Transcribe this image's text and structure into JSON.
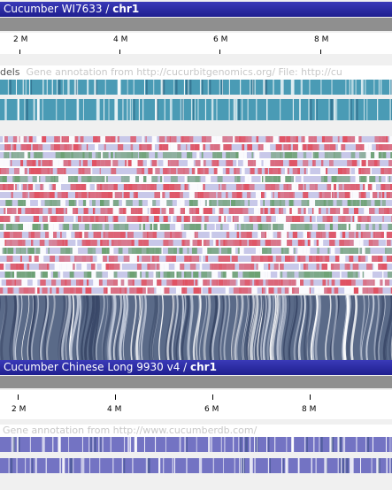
{
  "genome1": {
    "name": "Cucumber WI7633",
    "sep": " / ",
    "chromosome": "chr1",
    "ruler_labels": [
      "2 M",
      "4 M",
      "6 M",
      "8 M"
    ],
    "track_label": "dels",
    "annotation": "Gene annotation from http://cucurbitgenomics.org/ File: http://cu"
  },
  "genome2": {
    "name": "Cucumber Chinese Long 9930 v4",
    "sep": " / ",
    "chromosome": "chr1",
    "ruler_labels": [
      "2 M",
      "4 M",
      "6 M",
      "8 M"
    ],
    "annotation": "Gene annotation from http://www.cucumberdb.com/"
  },
  "colors": {
    "title_bar": "#1f1f8f",
    "teal_track": "#2a8aa8",
    "indigo_track": "#5a5ab8",
    "variant_red": "#e05060",
    "variant_green": "#6aa070",
    "variant_lilac": "#b0b0e0"
  }
}
